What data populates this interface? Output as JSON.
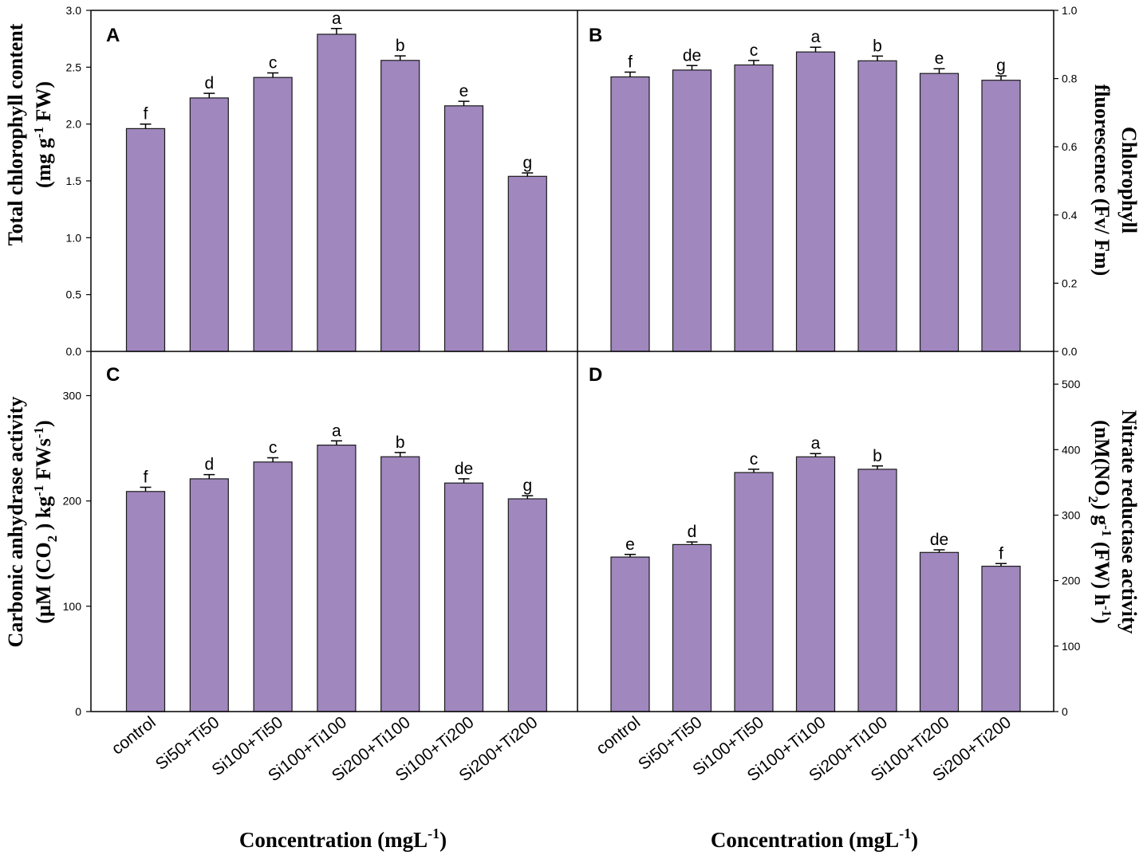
{
  "colors": {
    "bar": "#a087be",
    "axis": "#000000"
  },
  "x_axis_title": {
    "text": "Concentration (mgL",
    "sup": "-1",
    "close": ")"
  },
  "chart_data": [
    {
      "panel": "A",
      "type": "bar",
      "categories": [
        "control",
        "Si50+Ti50",
        "Si100+Ti50",
        "Si100+Ti100",
        "Si200+Ti100",
        "Si100+Ti200",
        "Si200+Ti200"
      ],
      "values": [
        1.96,
        2.23,
        2.41,
        2.79,
        2.56,
        2.16,
        1.54
      ],
      "errors": [
        0.04,
        0.04,
        0.04,
        0.05,
        0.04,
        0.04,
        0.03
      ],
      "letters": [
        "f",
        "d",
        "c",
        "a",
        "b",
        "e",
        "g"
      ],
      "ylim": [
        0,
        3.0
      ],
      "ticks": [
        0.0,
        0.5,
        1.0,
        1.5,
        2.0,
        2.5,
        3.0
      ],
      "tick_labels": [
        "0.0",
        "0.5",
        "1.0",
        "1.5",
        "2.0",
        "2.5",
        "3.0"
      ],
      "axis_side": "left",
      "ylabel": {
        "line1": "Total chlorophyll content",
        "line2_a": "(mg g",
        "line2_sup": "-1",
        "line2_b": " FW)"
      }
    },
    {
      "panel": "B",
      "type": "bar",
      "categories": [
        "control",
        "Si50+Ti50",
        "Si100+Ti50",
        "Si100+Ti100",
        "Si200+Ti100",
        "Si100+Ti200",
        "Si200+Ti200"
      ],
      "values": [
        0.805,
        0.825,
        0.84,
        0.878,
        0.852,
        0.815,
        0.795
      ],
      "errors": [
        0.014,
        0.013,
        0.013,
        0.014,
        0.014,
        0.014,
        0.013
      ],
      "letters": [
        "f",
        "de",
        "c",
        "a",
        "b",
        "e",
        "g"
      ],
      "ylim": [
        0,
        1.0
      ],
      "ticks": [
        0.0,
        0.2,
        0.4,
        0.6,
        0.8,
        1.0
      ],
      "tick_labels": [
        "0.0",
        "0.2",
        "0.4",
        "0.6",
        "0.8",
        "1.0"
      ],
      "axis_side": "right",
      "ylabel": {
        "line1": "Chlorophyll",
        "line2": "fluorescence (Fv/ Fm)"
      }
    },
    {
      "panel": "C",
      "type": "bar",
      "categories": [
        "control",
        "Si50+Ti50",
        "Si100+Ti50",
        "Si100+Ti100",
        "Si200+Ti100",
        "Si100+Ti200",
        "Si200+Ti200"
      ],
      "values": [
        209,
        221,
        237,
        253,
        242,
        217,
        202
      ],
      "errors": [
        4,
        4,
        4,
        4,
        4,
        4,
        3
      ],
      "letters": [
        "f",
        "d",
        "c",
        "a",
        "b",
        "de",
        "g"
      ],
      "ylim": [
        0,
        342
      ],
      "ticks": [
        0,
        100,
        200,
        300
      ],
      "tick_labels": [
        "0",
        "100",
        "200",
        "300"
      ],
      "axis_side": "left",
      "ylabel": {
        "line1": "Carbonic anhydrase activity",
        "line2_a": "(µM (CO",
        "line2_sub": "2",
        "line2_b": " ) kg",
        "line2_sup": "-1",
        "line2_c": " FWs",
        "line2_sup2": "-1",
        "line2_d": ")"
      },
      "category_labels_shown": true
    },
    {
      "panel": "D",
      "type": "bar",
      "categories": [
        "control",
        "Si50+Ti50",
        "Si100+Ti50",
        "Si100+Ti100",
        "Si200+Ti100",
        "Si100+Ti200",
        "Si200+Ti200"
      ],
      "values": [
        236,
        255,
        365,
        389,
        370,
        243,
        222
      ],
      "errors": [
        4,
        4,
        5,
        5,
        5,
        4,
        4
      ],
      "letters": [
        "e",
        "d",
        "c",
        "a",
        "b",
        "de",
        "f"
      ],
      "ylim": [
        0,
        550
      ],
      "ticks": [
        0,
        100,
        200,
        300,
        400,
        500
      ],
      "tick_labels": [
        "0",
        "100",
        "200",
        "300",
        "400",
        "500"
      ],
      "axis_side": "right",
      "ylabel": {
        "line1": "Nitrate reductase activity",
        "line2_a": "(nM(NO",
        "line2_sub": "2",
        "line2_b": ") g",
        "line2_sup": "-1",
        "line2_c": " (FW) h",
        "line2_sup2": "-1",
        "line2_d": ")"
      },
      "category_labels_shown": true
    }
  ]
}
